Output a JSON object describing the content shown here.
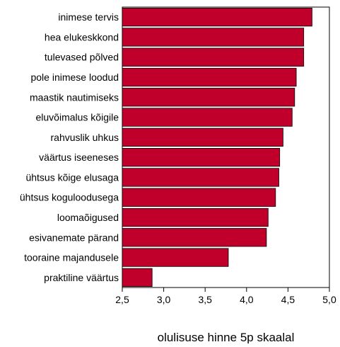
{
  "chart_data": {
    "type": "bar",
    "orientation": "horizontal",
    "categories": [
      "inimese tervis",
      "hea elukeskkond",
      "tulevased põlved",
      "pole inimese loodud",
      "maastik nautimiseks",
      "eluvõimalus kõigile",
      "rahvuslik uhkus",
      "väärtus iseeneses",
      "ühtsus kõige elusaga",
      "ühtsus koguloodusega",
      "loomaõigused",
      "esivanemate pärand",
      "tooraine majandusele",
      "praktiline väärtus"
    ],
    "values": [
      4.79,
      4.69,
      4.69,
      4.6,
      4.58,
      4.55,
      4.44,
      4.4,
      4.39,
      4.35,
      4.26,
      4.24,
      3.78,
      2.86
    ],
    "xlim": [
      2.5,
      5.0
    ],
    "xticks": [
      "2,5",
      "3,0",
      "3,5",
      "4,0",
      "4,5",
      "5,0"
    ],
    "xtick_values": [
      2.5,
      3.0,
      3.5,
      4.0,
      4.5,
      5.0
    ],
    "xlabel": "olulisuse hinne 5p skaalal",
    "ylabel": "",
    "title": "",
    "grid": false,
    "legend": "none",
    "colors": {
      "bar_fill": "#c0002a",
      "bar_stroke": "#000000",
      "axis": "#000000"
    }
  }
}
